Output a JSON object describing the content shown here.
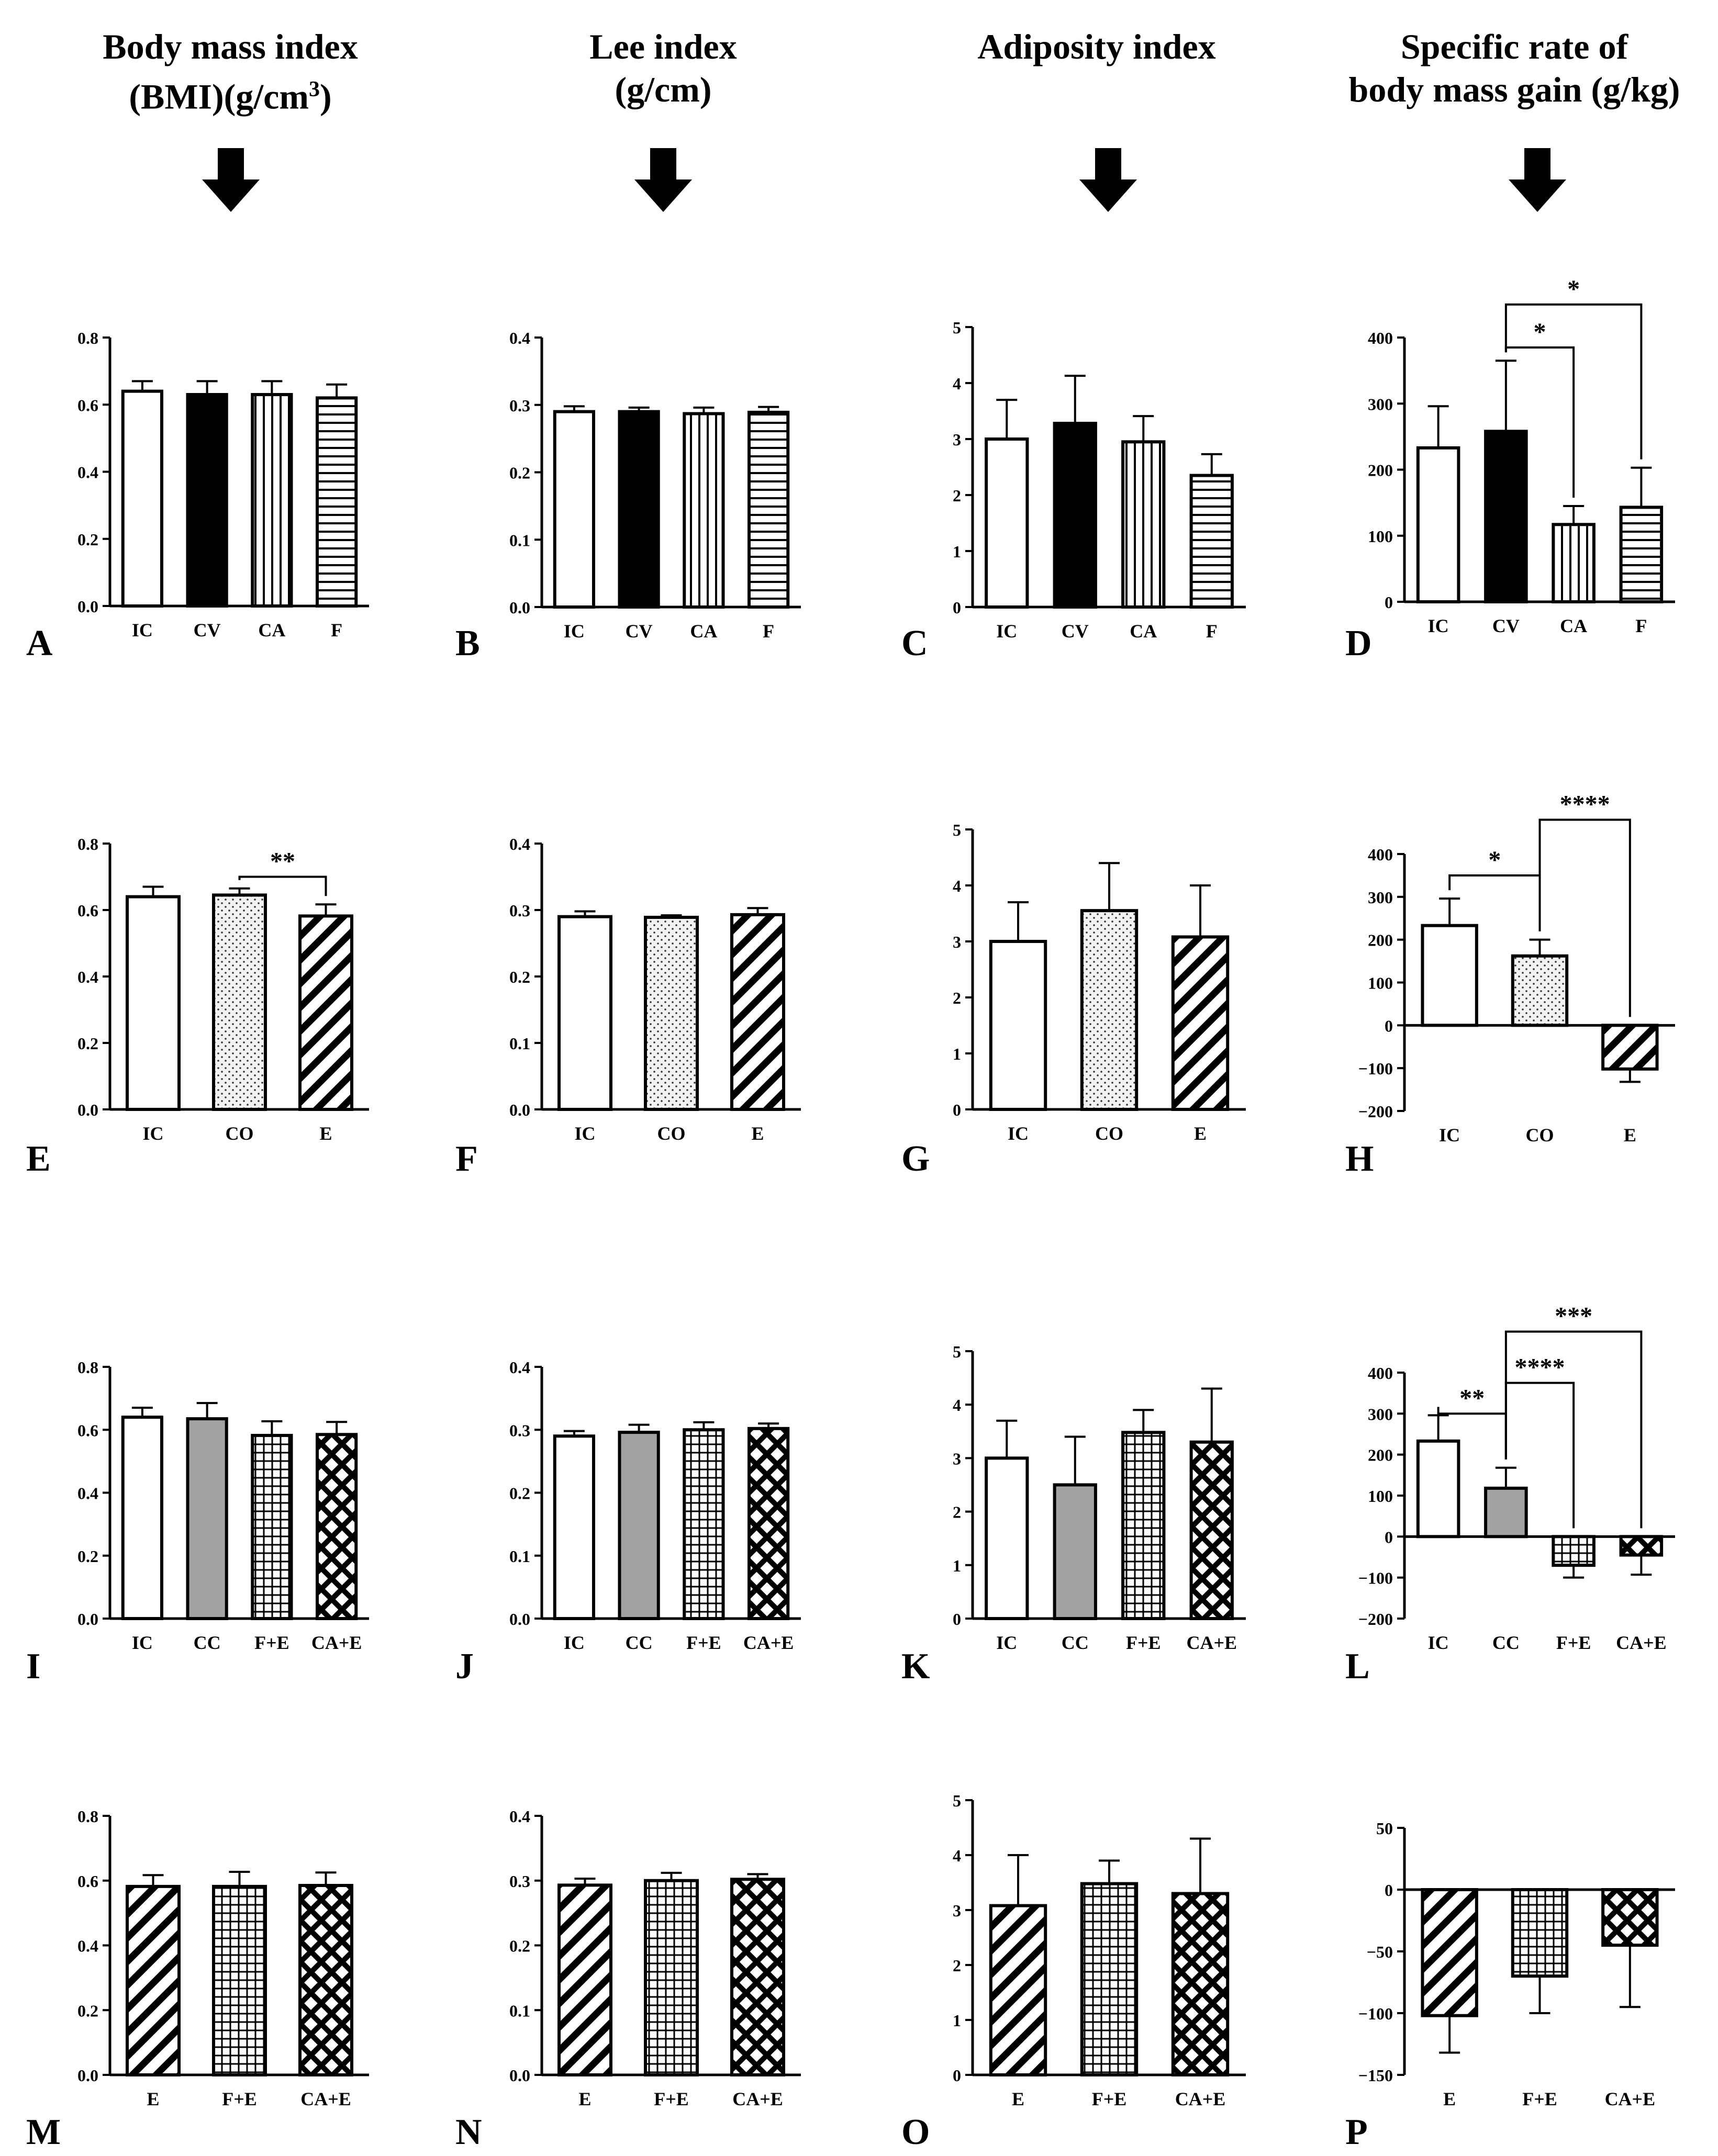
{
  "column_titles": [
    {
      "line1": "Body mass index",
      "line2": "(BMI)(g/cm",
      "sup": "3",
      "line2_end": ")"
    },
    {
      "line1": "Lee index",
      "line2": "(g/cm)",
      "sup": "",
      "line2_end": ""
    },
    {
      "line1": "Adiposity index",
      "line2": "",
      "sup": "",
      "line2_end": ""
    },
    {
      "line1": "Specific rate of",
      "line2": "body mass gain (g/kg)",
      "sup": "",
      "line2_end": ""
    }
  ],
  "panel_letters": [
    "A",
    "B",
    "C",
    "D",
    "E",
    "F",
    "G",
    "H",
    "I",
    "J",
    "K",
    "L",
    "M",
    "N",
    "O",
    "P"
  ],
  "chart_data": [
    {
      "id": "A",
      "type": "bar",
      "categories": [
        "IC",
        "CV",
        "CA",
        "F"
      ],
      "values": [
        0.64,
        0.63,
        0.63,
        0.62
      ],
      "errors": [
        0.03,
        0.04,
        0.04,
        0.04
      ],
      "patterns": [
        "white",
        "black",
        "vlines",
        "hlines"
      ],
      "ylim": [
        0,
        0.8
      ],
      "yticks": [
        "0.0",
        "0.2",
        "0.4",
        "0.6",
        "0.8"
      ],
      "brackets": []
    },
    {
      "id": "B",
      "type": "bar",
      "categories": [
        "IC",
        "CV",
        "CA",
        "F"
      ],
      "values": [
        0.29,
        0.29,
        0.287,
        0.289
      ],
      "errors": [
        0.008,
        0.006,
        0.009,
        0.008
      ],
      "patterns": [
        "white",
        "black",
        "vlines",
        "hlines"
      ],
      "ylim": [
        0,
        0.4
      ],
      "yticks": [
        "0.0",
        "0.1",
        "0.2",
        "0.3",
        "0.4"
      ],
      "brackets": []
    },
    {
      "id": "C",
      "type": "bar",
      "categories": [
        "IC",
        "CV",
        "CA",
        "F"
      ],
      "values": [
        3.0,
        3.28,
        2.95,
        2.35
      ],
      "errors": [
        0.7,
        0.85,
        0.46,
        0.38
      ],
      "patterns": [
        "white",
        "black",
        "vlines",
        "hlines"
      ],
      "ylim": [
        0,
        5
      ],
      "yticks": [
        "0",
        "1",
        "2",
        "3",
        "4",
        "5"
      ],
      "brackets": []
    },
    {
      "id": "D",
      "type": "bar",
      "categories": [
        "IC",
        "CV",
        "CA",
        "F"
      ],
      "values": [
        233,
        258,
        117,
        143
      ],
      "errors": [
        63,
        107,
        28,
        60
      ],
      "patterns": [
        "white",
        "black",
        "vlines",
        "hlines"
      ],
      "ylim": [
        0,
        400
      ],
      "yticks": [
        "0",
        "100",
        "200",
        "300",
        "400"
      ],
      "brackets": [
        {
          "from": 1,
          "to": 2,
          "label": "*",
          "level": 385
        },
        {
          "from": 1,
          "to": 3,
          "label": "*",
          "level": 450
        }
      ]
    },
    {
      "id": "E",
      "type": "bar",
      "categories": [
        "IC",
        "CO",
        "E"
      ],
      "values": [
        0.64,
        0.645,
        0.582
      ],
      "errors": [
        0.03,
        0.02,
        0.035
      ],
      "patterns": [
        "white",
        "dots",
        "diag"
      ],
      "ylim": [
        0,
        0.8
      ],
      "yticks": [
        "0.0",
        "0.2",
        "0.4",
        "0.6",
        "0.8"
      ],
      "brackets": [
        {
          "from": 1,
          "to": 2,
          "label": "**",
          "level": 0.7
        }
      ]
    },
    {
      "id": "F",
      "type": "bar",
      "categories": [
        "IC",
        "CO",
        "E"
      ],
      "values": [
        0.29,
        0.289,
        0.293
      ],
      "errors": [
        0.008,
        0.003,
        0.01
      ],
      "patterns": [
        "white",
        "dots",
        "diag"
      ],
      "ylim": [
        0,
        0.4
      ],
      "yticks": [
        "0.0",
        "0.1",
        "0.2",
        "0.3",
        "0.4"
      ],
      "brackets": []
    },
    {
      "id": "G",
      "type": "bar",
      "categories": [
        "IC",
        "CO",
        "E"
      ],
      "values": [
        3.0,
        3.55,
        3.08
      ],
      "errors": [
        0.7,
        0.85,
        0.92
      ],
      "patterns": [
        "white",
        "dots",
        "diag"
      ],
      "ylim": [
        0,
        5
      ],
      "yticks": [
        "0",
        "1",
        "2",
        "3",
        "4",
        "5"
      ],
      "brackets": []
    },
    {
      "id": "H",
      "type": "bar",
      "categories": [
        "IC",
        "CO",
        "E"
      ],
      "values": [
        233,
        162,
        -102
      ],
      "errors": [
        63,
        38,
        30
      ],
      "patterns": [
        "white",
        "dots",
        "diag"
      ],
      "ylim": [
        -200,
        400
      ],
      "yticks": [
        "−200",
        "−100",
        "0",
        "100",
        "200",
        "300",
        "400"
      ],
      "brackets": [
        {
          "from": 0,
          "to": 1,
          "label": "*",
          "level": 350
        },
        {
          "from": 1,
          "to": 2,
          "label": "****",
          "level": 480
        }
      ]
    },
    {
      "id": "I",
      "type": "bar",
      "categories": [
        "IC",
        "CC",
        "F+E",
        "CA+E"
      ],
      "values": [
        0.64,
        0.635,
        0.582,
        0.585
      ],
      "errors": [
        0.03,
        0.05,
        0.045,
        0.04
      ],
      "patterns": [
        "white",
        "gray",
        "grid",
        "diamond"
      ],
      "ylim": [
        0,
        0.8
      ],
      "yticks": [
        "0.0",
        "0.2",
        "0.4",
        "0.6",
        "0.8"
      ],
      "brackets": []
    },
    {
      "id": "J",
      "type": "bar",
      "categories": [
        "IC",
        "CC",
        "F+E",
        "CA+E"
      ],
      "values": [
        0.29,
        0.296,
        0.3,
        0.302
      ],
      "errors": [
        0.008,
        0.012,
        0.012,
        0.008
      ],
      "patterns": [
        "white",
        "gray",
        "grid",
        "diamond"
      ],
      "ylim": [
        0,
        0.4
      ],
      "yticks": [
        "0.0",
        "0.1",
        "0.2",
        "0.3",
        "0.4"
      ],
      "brackets": []
    },
    {
      "id": "K",
      "type": "bar",
      "categories": [
        "IC",
        "CC",
        "F+E",
        "CA+E"
      ],
      "values": [
        3.0,
        2.5,
        3.48,
        3.3
      ],
      "errors": [
        0.7,
        0.9,
        0.42,
        1.0
      ],
      "patterns": [
        "white",
        "gray",
        "grid",
        "diamond"
      ],
      "ylim": [
        0,
        5
      ],
      "yticks": [
        "0",
        "1",
        "2",
        "3",
        "4",
        "5"
      ],
      "brackets": []
    },
    {
      "id": "L",
      "type": "bar",
      "categories": [
        "IC",
        "CC",
        "F+E",
        "CA+E"
      ],
      "values": [
        233,
        118,
        -70,
        -45
      ],
      "errors": [
        63,
        50,
        30,
        48
      ],
      "patterns": [
        "white",
        "gray",
        "grid",
        "diamond"
      ],
      "ylim": [
        -200,
        400
      ],
      "yticks": [
        "−200",
        "−100",
        "0",
        "100",
        "200",
        "300",
        "400"
      ],
      "brackets": [
        {
          "from": 0,
          "to": 1,
          "label": "**",
          "level": 300
        },
        {
          "from": 1,
          "to": 2,
          "label": "****",
          "level": 375
        },
        {
          "from": 1,
          "to": 3,
          "label": "***",
          "level": 500
        }
      ]
    },
    {
      "id": "M",
      "type": "bar",
      "categories": [
        "E",
        "F+E",
        "CA+E"
      ],
      "values": [
        0.582,
        0.582,
        0.585
      ],
      "errors": [
        0.035,
        0.045,
        0.04
      ],
      "patterns": [
        "diag",
        "grid",
        "diamond"
      ],
      "ylim": [
        0,
        0.8
      ],
      "yticks": [
        "0.0",
        "0.2",
        "0.4",
        "0.6",
        "0.8"
      ],
      "brackets": []
    },
    {
      "id": "N",
      "type": "bar",
      "categories": [
        "E",
        "F+E",
        "CA+E"
      ],
      "values": [
        0.293,
        0.3,
        0.302
      ],
      "errors": [
        0.01,
        0.012,
        0.008
      ],
      "patterns": [
        "diag",
        "grid",
        "diamond"
      ],
      "ylim": [
        0,
        0.4
      ],
      "yticks": [
        "0.0",
        "0.1",
        "0.2",
        "0.3",
        "0.4"
      ],
      "brackets": []
    },
    {
      "id": "O",
      "type": "bar",
      "categories": [
        "E",
        "F+E",
        "CA+E"
      ],
      "values": [
        3.08,
        3.48,
        3.3
      ],
      "errors": [
        0.92,
        0.42,
        1.0
      ],
      "patterns": [
        "diag",
        "grid",
        "diamond"
      ],
      "ylim": [
        0,
        5
      ],
      "yticks": [
        "0",
        "1",
        "2",
        "3",
        "4",
        "5"
      ],
      "brackets": []
    },
    {
      "id": "P",
      "type": "bar",
      "categories": [
        "E",
        "F+E",
        "CA+E"
      ],
      "values": [
        -102,
        -70,
        -45
      ],
      "errors": [
        30,
        30,
        50
      ],
      "patterns": [
        "diag",
        "grid",
        "diamond"
      ],
      "ylim": [
        -150,
        50
      ],
      "yticks": [
        "−150",
        "−100",
        "−50",
        "0",
        "50"
      ],
      "brackets": []
    }
  ]
}
